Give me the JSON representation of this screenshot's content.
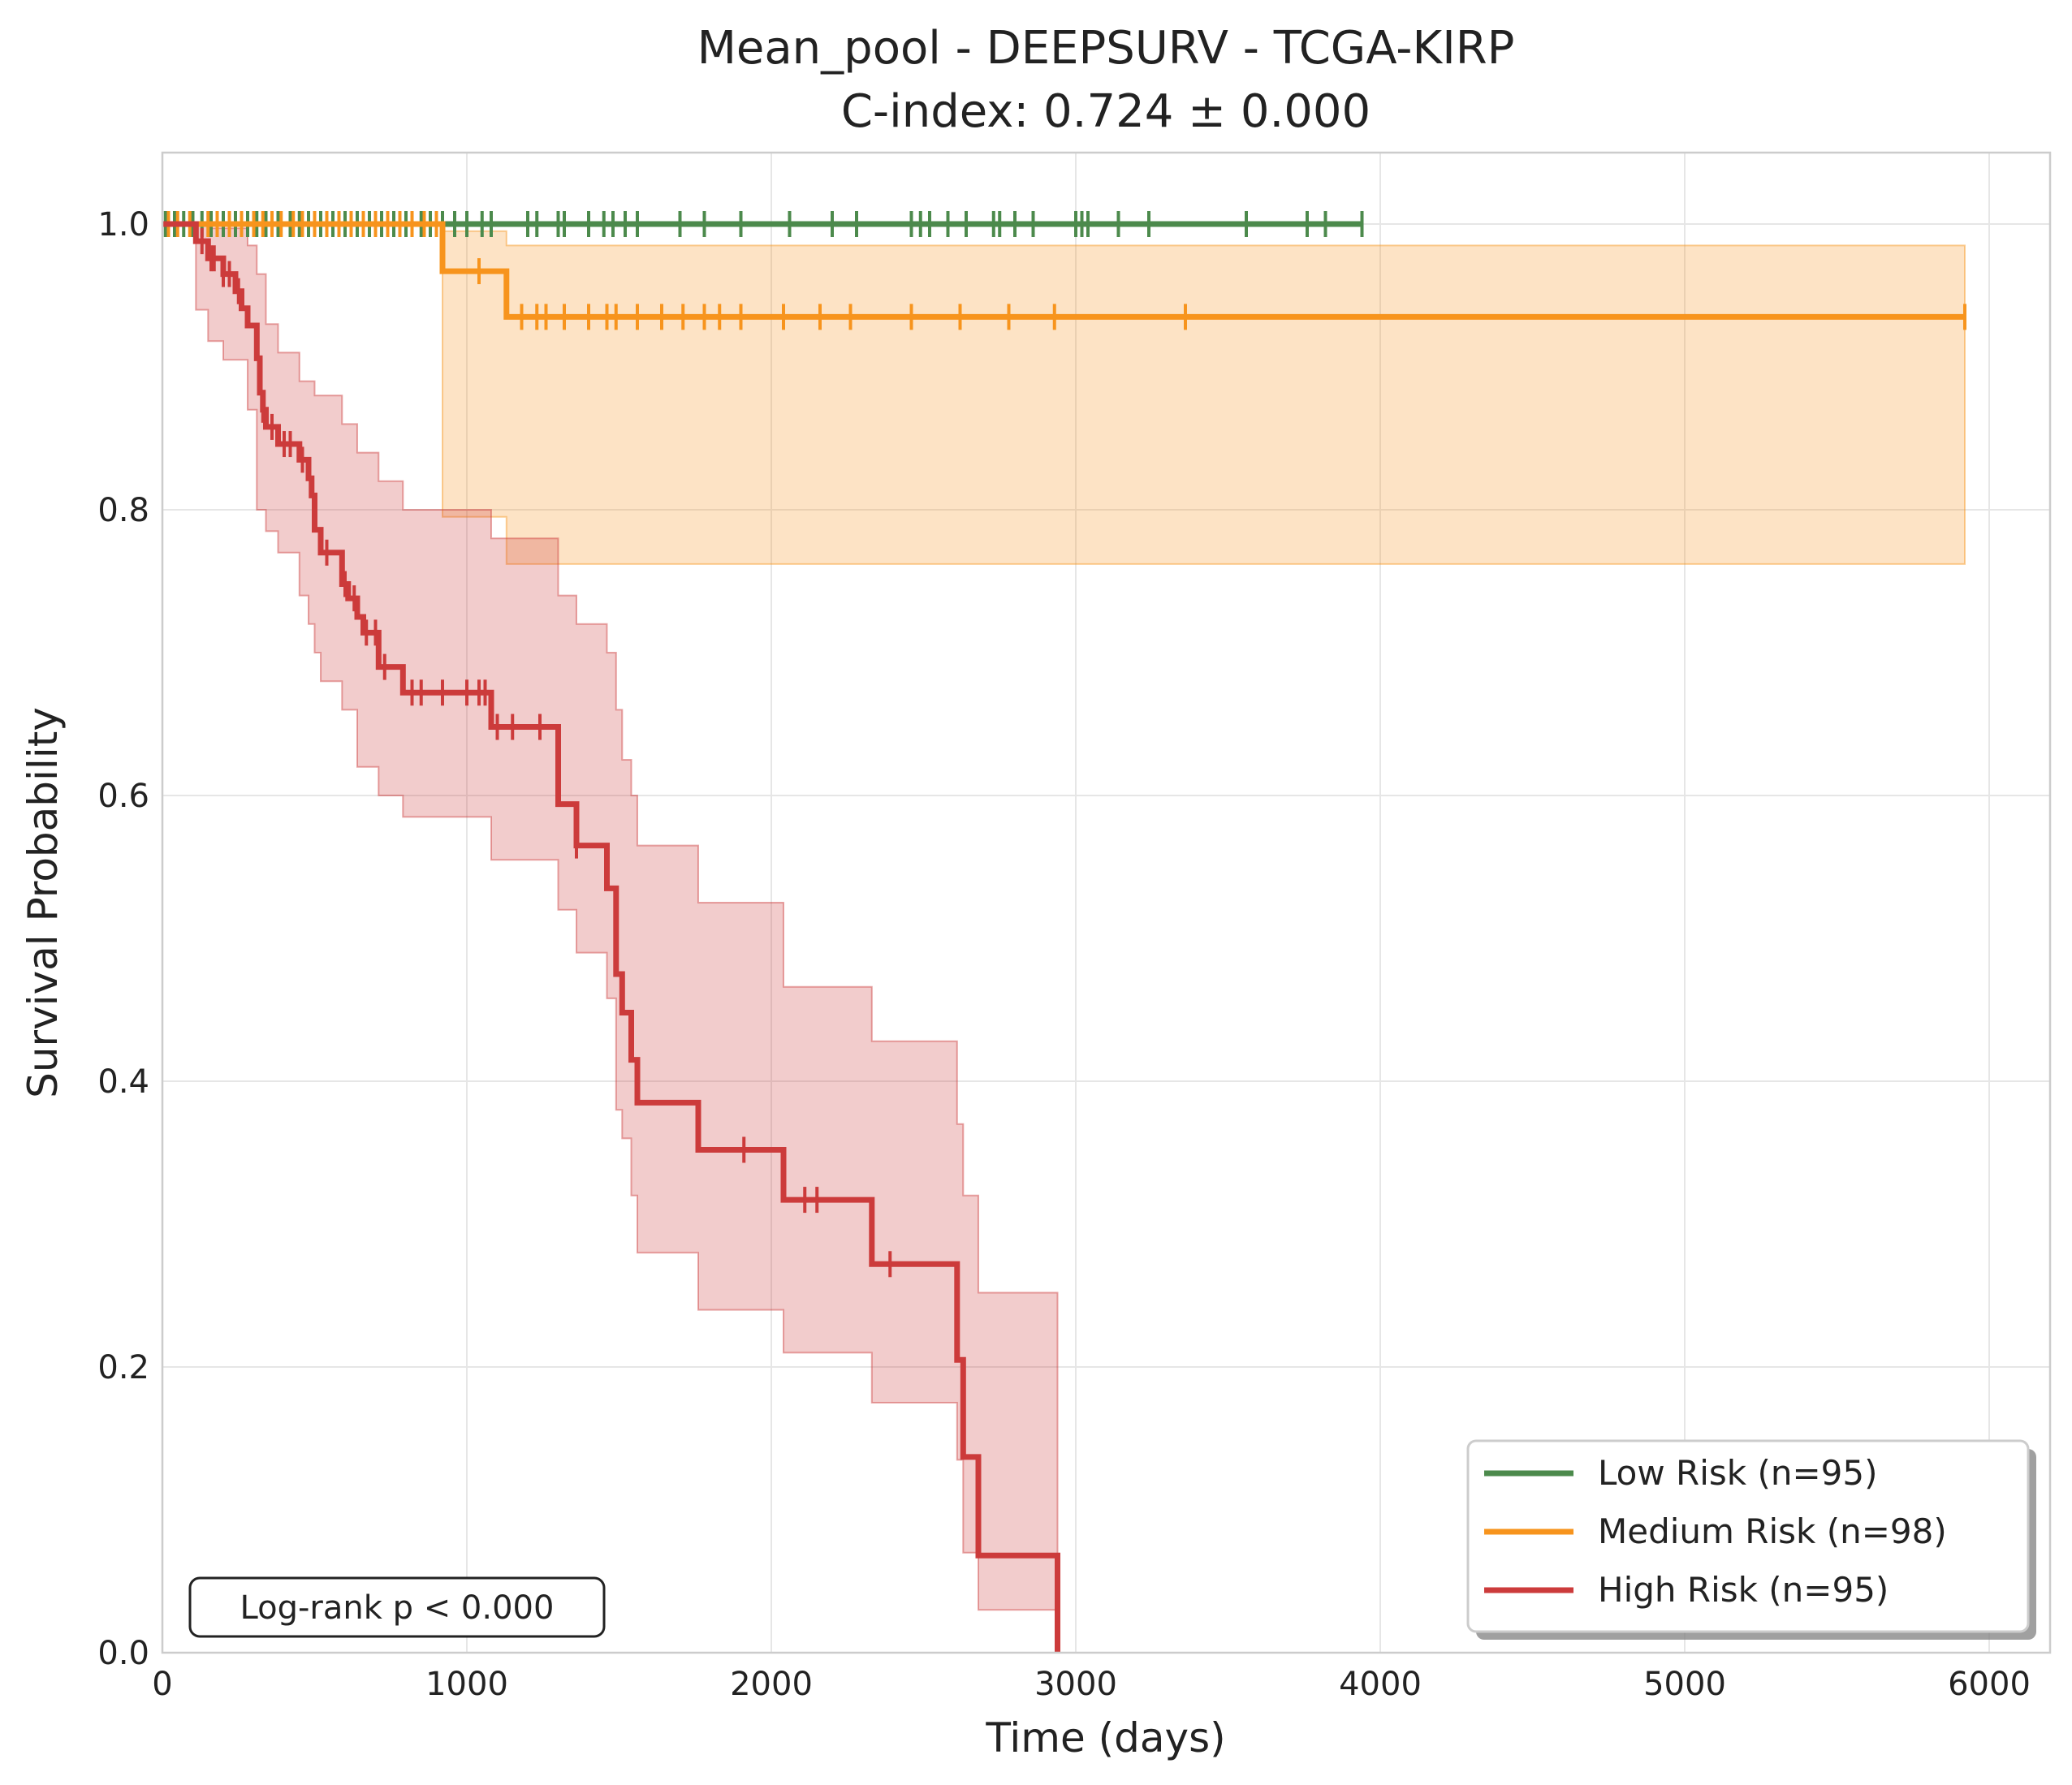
{
  "chart_data": {
    "type": "line",
    "subtype": "kaplan-meier",
    "title": "Mean_pool - DEEPSURV - TCGA-KIRP",
    "subtitle": "C-index: 0.724 ± 0.000",
    "xlabel": "Time (days)",
    "ylabel": "Survival Probability",
    "xlim": [
      0,
      6200
    ],
    "ylim": [
      0,
      1.05
    ],
    "xticks": [
      0,
      1000,
      2000,
      3000,
      4000,
      5000,
      6000
    ],
    "xtick_labels": [
      "0",
      "1000",
      "2000",
      "3000",
      "4000",
      "5000",
      "6000"
    ],
    "yticks": [
      0.0,
      0.2,
      0.4,
      0.6,
      0.8,
      1.0
    ],
    "ytick_labels": [
      "0.0",
      "0.2",
      "0.4",
      "0.6",
      "0.8",
      "1.0"
    ],
    "grid": true,
    "legend_position": "bottom-right",
    "annotation": "Log-rank p < 0.000",
    "series": [
      {
        "name": "Low Risk (n=95)",
        "color": "#4c8a4c",
        "steps": [
          [
            0,
            1.0
          ],
          [
            3940,
            1.0
          ]
        ],
        "ci_lower": [
          [
            0,
            1.0
          ],
          [
            3940,
            1.0
          ]
        ],
        "ci_upper": [
          [
            0,
            1.0
          ],
          [
            3940,
            1.0
          ]
        ],
        "censored": [
          10,
          40,
          70,
          100,
          130,
          160,
          200,
          240,
          280,
          310,
          340,
          380,
          420,
          450,
          480,
          520,
          560,
          600,
          640,
          680,
          720,
          760,
          800,
          850,
          880,
          920,
          960,
          1000,
          1050,
          1080,
          1200,
          1230,
          1300,
          1320,
          1400,
          1450,
          1480,
          1520,
          1560,
          1700,
          1780,
          1900,
          2060,
          2200,
          2280,
          2460,
          2490,
          2520,
          2580,
          2640,
          2730,
          2750,
          2800,
          2860,
          3000,
          3020,
          3040,
          3140,
          3240,
          3560,
          3760,
          3820,
          3940
        ]
      },
      {
        "name": "Medium Risk (n=98)",
        "color": "#f7941d",
        "steps": [
          [
            0,
            1.0
          ],
          [
            920,
            1.0
          ],
          [
            920,
            0.967
          ],
          [
            1130,
            0.967
          ],
          [
            1130,
            0.935
          ],
          [
            5920,
            0.935
          ]
        ],
        "ci_lower": [
          [
            0,
            1.0
          ],
          [
            920,
            1.0
          ],
          [
            920,
            0.795
          ],
          [
            1130,
            0.795
          ],
          [
            1130,
            0.762
          ],
          [
            5920,
            0.762
          ]
        ],
        "ci_upper": [
          [
            0,
            1.0
          ],
          [
            920,
            1.0
          ],
          [
            920,
            0.995
          ],
          [
            1130,
            0.995
          ],
          [
            1130,
            0.985
          ],
          [
            5920,
            0.985
          ]
        ],
        "censored": [
          20,
          50,
          90,
          150,
          180,
          220,
          260,
          300,
          330,
          360,
          390,
          430,
          460,
          500,
          540,
          580,
          620,
          660,
          700,
          740,
          780,
          820,
          860,
          900,
          1040,
          1180,
          1230,
          1260,
          1320,
          1400,
          1460,
          1490,
          1560,
          1640,
          1710,
          1780,
          1830,
          1900,
          2040,
          2160,
          2260,
          2460,
          2620,
          2780,
          2930,
          3360,
          5920
        ]
      },
      {
        "name": "High Risk (n=95)",
        "color": "#cc3b3b",
        "steps": [
          [
            0,
            1.0
          ],
          [
            110,
            1.0
          ],
          [
            110,
            0.988
          ],
          [
            150,
            0.988
          ],
          [
            150,
            0.976
          ],
          [
            200,
            0.976
          ],
          [
            200,
            0.965
          ],
          [
            240,
            0.965
          ],
          [
            240,
            0.953
          ],
          [
            260,
            0.953
          ],
          [
            260,
            0.941
          ],
          [
            280,
            0.941
          ],
          [
            280,
            0.929
          ],
          [
            310,
            0.929
          ],
          [
            310,
            0.906
          ],
          [
            320,
            0.906
          ],
          [
            320,
            0.882
          ],
          [
            330,
            0.882
          ],
          [
            330,
            0.87
          ],
          [
            340,
            0.87
          ],
          [
            340,
            0.858
          ],
          [
            380,
            0.858
          ],
          [
            380,
            0.846
          ],
          [
            450,
            0.846
          ],
          [
            450,
            0.835
          ],
          [
            480,
            0.835
          ],
          [
            480,
            0.822
          ],
          [
            490,
            0.822
          ],
          [
            490,
            0.81
          ],
          [
            500,
            0.81
          ],
          [
            500,
            0.786
          ],
          [
            520,
            0.786
          ],
          [
            520,
            0.77
          ],
          [
            590,
            0.77
          ],
          [
            590,
            0.748
          ],
          [
            610,
            0.748
          ],
          [
            610,
            0.738
          ],
          [
            640,
            0.738
          ],
          [
            640,
            0.725
          ],
          [
            660,
            0.725
          ],
          [
            660,
            0.714
          ],
          [
            710,
            0.714
          ],
          [
            710,
            0.69
          ],
          [
            790,
            0.69
          ],
          [
            790,
            0.672
          ],
          [
            1080,
            0.672
          ],
          [
            1080,
            0.648
          ],
          [
            1300,
            0.648
          ],
          [
            1300,
            0.594
          ],
          [
            1360,
            0.594
          ],
          [
            1360,
            0.565
          ],
          [
            1460,
            0.565
          ],
          [
            1460,
            0.535
          ],
          [
            1490,
            0.535
          ],
          [
            1490,
            0.475
          ],
          [
            1510,
            0.475
          ],
          [
            1510,
            0.448
          ],
          [
            1540,
            0.448
          ],
          [
            1540,
            0.415
          ],
          [
            1560,
            0.415
          ],
          [
            1560,
            0.385
          ],
          [
            1760,
            0.385
          ],
          [
            1760,
            0.352
          ],
          [
            2040,
            0.352
          ],
          [
            2040,
            0.317
          ],
          [
            2330,
            0.317
          ],
          [
            2330,
            0.272
          ],
          [
            2610,
            0.272
          ],
          [
            2610,
            0.205
          ],
          [
            2630,
            0.205
          ],
          [
            2630,
            0.137
          ],
          [
            2680,
            0.137
          ],
          [
            2680,
            0.068
          ],
          [
            2940,
            0.068
          ],
          [
            2940,
            0.0
          ]
        ],
        "ci_lower": [
          [
            0,
            1.0
          ],
          [
            110,
            1.0
          ],
          [
            110,
            0.94
          ],
          [
            150,
            0.94
          ],
          [
            150,
            0.918
          ],
          [
            200,
            0.918
          ],
          [
            200,
            0.905
          ],
          [
            280,
            0.905
          ],
          [
            280,
            0.87
          ],
          [
            310,
            0.87
          ],
          [
            310,
            0.8
          ],
          [
            340,
            0.8
          ],
          [
            340,
            0.785
          ],
          [
            380,
            0.785
          ],
          [
            380,
            0.77
          ],
          [
            450,
            0.77
          ],
          [
            450,
            0.74
          ],
          [
            480,
            0.74
          ],
          [
            480,
            0.72
          ],
          [
            500,
            0.72
          ],
          [
            500,
            0.7
          ],
          [
            520,
            0.7
          ],
          [
            520,
            0.68
          ],
          [
            590,
            0.68
          ],
          [
            590,
            0.66
          ],
          [
            640,
            0.66
          ],
          [
            640,
            0.62
          ],
          [
            710,
            0.62
          ],
          [
            710,
            0.6
          ],
          [
            790,
            0.6
          ],
          [
            790,
            0.585
          ],
          [
            1080,
            0.585
          ],
          [
            1080,
            0.555
          ],
          [
            1300,
            0.555
          ],
          [
            1300,
            0.52
          ],
          [
            1360,
            0.52
          ],
          [
            1360,
            0.49
          ],
          [
            1460,
            0.49
          ],
          [
            1460,
            0.458
          ],
          [
            1490,
            0.458
          ],
          [
            1490,
            0.38
          ],
          [
            1510,
            0.38
          ],
          [
            1510,
            0.36
          ],
          [
            1540,
            0.36
          ],
          [
            1540,
            0.32
          ],
          [
            1560,
            0.32
          ],
          [
            1560,
            0.28
          ],
          [
            1760,
            0.28
          ],
          [
            1760,
            0.24
          ],
          [
            2040,
            0.24
          ],
          [
            2040,
            0.21
          ],
          [
            2330,
            0.21
          ],
          [
            2330,
            0.175
          ],
          [
            2610,
            0.175
          ],
          [
            2610,
            0.135
          ],
          [
            2630,
            0.135
          ],
          [
            2630,
            0.07
          ],
          [
            2680,
            0.07
          ],
          [
            2680,
            0.03
          ],
          [
            2940,
            0.03
          ]
        ],
        "ci_upper": [
          [
            0,
            1.0
          ],
          [
            150,
            1.0
          ],
          [
            150,
            0.997
          ],
          [
            280,
            0.997
          ],
          [
            280,
            0.985
          ],
          [
            310,
            0.985
          ],
          [
            310,
            0.965
          ],
          [
            340,
            0.965
          ],
          [
            340,
            0.93
          ],
          [
            380,
            0.93
          ],
          [
            380,
            0.91
          ],
          [
            450,
            0.91
          ],
          [
            450,
            0.89
          ],
          [
            500,
            0.89
          ],
          [
            500,
            0.88
          ],
          [
            590,
            0.88
          ],
          [
            590,
            0.86
          ],
          [
            640,
            0.86
          ],
          [
            640,
            0.84
          ],
          [
            710,
            0.84
          ],
          [
            710,
            0.82
          ],
          [
            790,
            0.82
          ],
          [
            790,
            0.8
          ],
          [
            1080,
            0.8
          ],
          [
            1080,
            0.78
          ],
          [
            1300,
            0.78
          ],
          [
            1300,
            0.74
          ],
          [
            1360,
            0.74
          ],
          [
            1360,
            0.72
          ],
          [
            1460,
            0.72
          ],
          [
            1460,
            0.7
          ],
          [
            1490,
            0.7
          ],
          [
            1490,
            0.66
          ],
          [
            1510,
            0.66
          ],
          [
            1510,
            0.625
          ],
          [
            1540,
            0.625
          ],
          [
            1540,
            0.6
          ],
          [
            1560,
            0.6
          ],
          [
            1560,
            0.565
          ],
          [
            1760,
            0.565
          ],
          [
            1760,
            0.525
          ],
          [
            2040,
            0.525
          ],
          [
            2040,
            0.466
          ],
          [
            2330,
            0.466
          ],
          [
            2330,
            0.428
          ],
          [
            2610,
            0.428
          ],
          [
            2610,
            0.37
          ],
          [
            2630,
            0.37
          ],
          [
            2630,
            0.32
          ],
          [
            2680,
            0.32
          ],
          [
            2680,
            0.252
          ],
          [
            2940,
            0.252
          ]
        ],
        "censored": [
          130,
          160,
          170,
          200,
          220,
          250,
          330,
          360,
          400,
          420,
          460,
          540,
          600,
          630,
          670,
          700,
          730,
          820,
          850,
          920,
          1000,
          1040,
          1060,
          1100,
          1150,
          1240,
          1360,
          1910,
          2110,
          2150,
          2390
        ]
      }
    ]
  }
}
